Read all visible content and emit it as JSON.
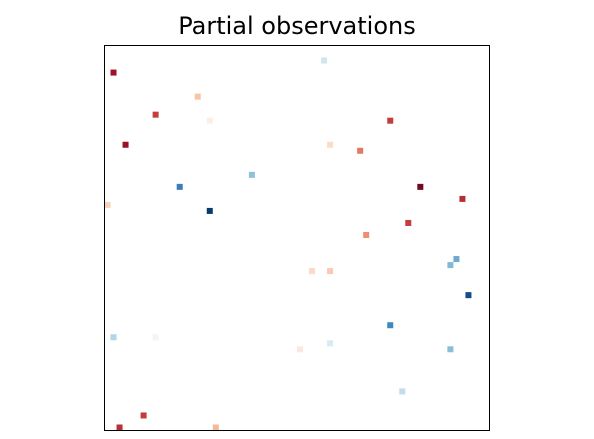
{
  "chart_data": {
    "type": "heatmap",
    "title": "Partial observations",
    "rows": 64,
    "cols": 64,
    "cells": [
      {
        "row": 4,
        "col": 1,
        "color": "#a11228"
      },
      {
        "row": 2,
        "col": 36,
        "color": "#d1e5f0"
      },
      {
        "row": 8,
        "col": 15,
        "color": "#f7c4a5"
      },
      {
        "row": 11,
        "col": 8,
        "color": "#c53e3d"
      },
      {
        "row": 12,
        "col": 17,
        "color": "#fbeee6"
      },
      {
        "row": 12,
        "col": 47,
        "color": "#c43c3c"
      },
      {
        "row": 16,
        "col": 3,
        "color": "#9b1027"
      },
      {
        "row": 16,
        "col": 37,
        "color": "#fbdcc8"
      },
      {
        "row": 17,
        "col": 42,
        "color": "#e07b62"
      },
      {
        "row": 21,
        "col": 24,
        "color": "#8ec1dc"
      },
      {
        "row": 23,
        "col": 12,
        "color": "#3a7eb8"
      },
      {
        "row": 23,
        "col": 52,
        "color": "#6e0a22"
      },
      {
        "row": 25,
        "col": 59,
        "color": "#b72d35"
      },
      {
        "row": 26,
        "col": 0,
        "color": "#f8d2bd"
      },
      {
        "row": 27,
        "col": 17,
        "color": "#0a3b6f"
      },
      {
        "row": 29,
        "col": 50,
        "color": "#c73d3e"
      },
      {
        "row": 31,
        "col": 43,
        "color": "#eb9172"
      },
      {
        "row": 35,
        "col": 58,
        "color": "#6ea9cf"
      },
      {
        "row": 36,
        "col": 57,
        "color": "#84b8d8"
      },
      {
        "row": 37,
        "col": 34,
        "color": "#fbdac6"
      },
      {
        "row": 37,
        "col": 37,
        "color": "#f8cbb1"
      },
      {
        "row": 41,
        "col": 60,
        "color": "#134c87"
      },
      {
        "row": 46,
        "col": 47,
        "color": "#3f87bd"
      },
      {
        "row": 48,
        "col": 1,
        "color": "#b4d5e7"
      },
      {
        "row": 48,
        "col": 8,
        "color": "#f2f4f6"
      },
      {
        "row": 49,
        "col": 37,
        "color": "#d9eaf2"
      },
      {
        "row": 50,
        "col": 32,
        "color": "#fbe9de"
      },
      {
        "row": 50,
        "col": 57,
        "color": "#89bdda"
      },
      {
        "row": 57,
        "col": 49,
        "color": "#c3dcec"
      },
      {
        "row": 61,
        "col": 6,
        "color": "#c33b3c"
      },
      {
        "row": 63,
        "col": 2,
        "color": "#b8303a"
      },
      {
        "row": 63,
        "col": 18,
        "color": "#f5b899"
      }
    ]
  }
}
